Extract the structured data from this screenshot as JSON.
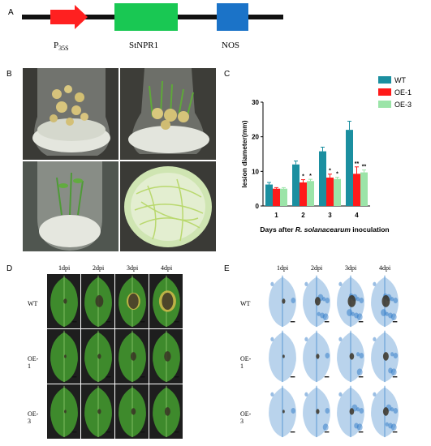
{
  "panels": {
    "a": "A",
    "b": "B",
    "c": "C",
    "d": "D",
    "e": "E"
  },
  "construct": {
    "promoter": "P",
    "promoter_sub": "35S",
    "gene": "StNPR1",
    "terminator": "NOS",
    "colors": {
      "promoter": "#ff2020",
      "gene": "#19c853",
      "terminator": "#1b73c8",
      "backbone": "#111111"
    }
  },
  "panel_d": {
    "columns": [
      "1dpi",
      "2dpi",
      "3dpi",
      "4dpi"
    ],
    "rows": [
      "WT",
      "OE-1",
      "OE-3"
    ]
  },
  "panel_e": {
    "columns": [
      "1dpi",
      "2dpi",
      "3dpi",
      "4dpi"
    ],
    "rows": [
      "WT",
      "OE-1",
      "OE-3"
    ]
  },
  "chart_data": {
    "type": "bar",
    "categories": [
      "1",
      "2",
      "3",
      "4"
    ],
    "series": [
      {
        "name": "WT",
        "values": [
          6.2,
          12.0,
          15.8,
          22.0
        ],
        "errors": [
          0.6,
          1.0,
          1.2,
          2.5
        ],
        "color": "#1b8fa0"
      },
      {
        "name": "OE-1",
        "values": [
          5.0,
          6.8,
          8.2,
          9.3
        ],
        "errors": [
          0.3,
          0.8,
          1.0,
          2.0
        ],
        "color": "#ff1a1a"
      },
      {
        "name": "OE-3",
        "values": [
          5.0,
          7.2,
          7.8,
          9.7
        ],
        "errors": [
          0.3,
          0.5,
          0.5,
          0.7
        ],
        "color": "#9be4a8"
      }
    ],
    "significance": {
      "OE-1": [
        "",
        "*",
        "*",
        "**"
      ],
      "OE-3": [
        "",
        "*",
        "*",
        "**"
      ]
    },
    "ylabel": "lesion diameter(mm)",
    "xlabel_prefix": "Days after ",
    "xlabel_italic": "R. solanacearum",
    "xlabel_suffix": " inoculation",
    "ylim": [
      0,
      30
    ],
    "yticks": [
      "0",
      "10",
      "20",
      "30"
    ],
    "legend_position": "top-right",
    "grid": false
  }
}
